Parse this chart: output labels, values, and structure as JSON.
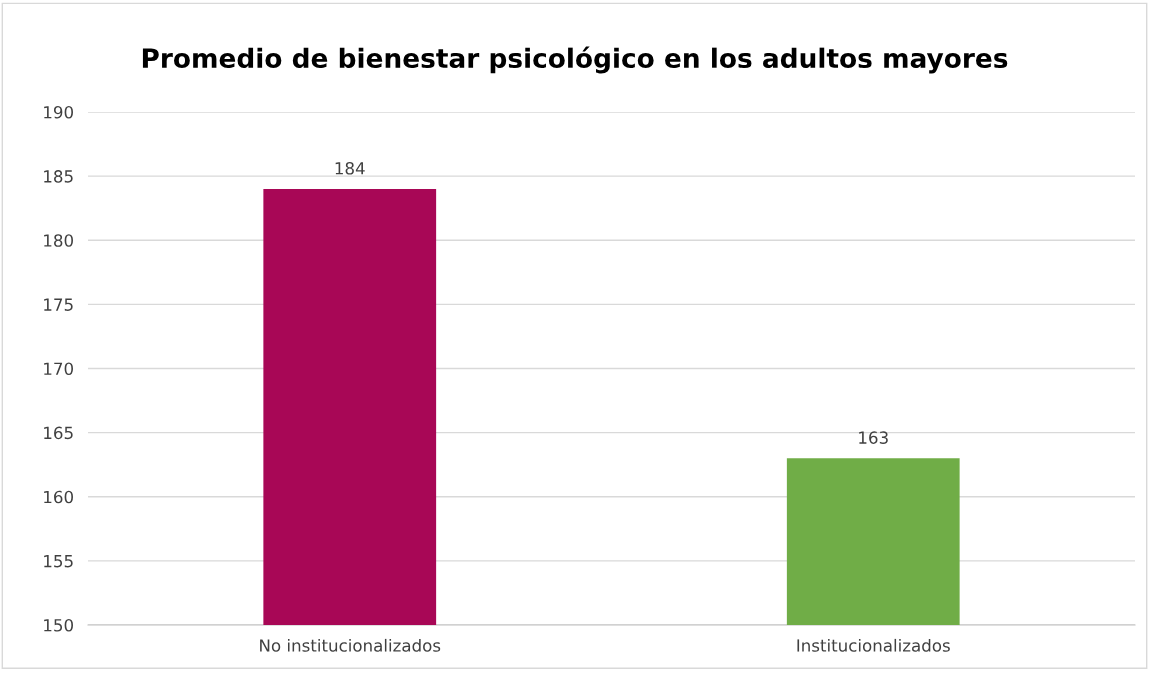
{
  "chart_data": {
    "type": "bar",
    "title": "Promedio de bienestar psicológico en los adultos mayores",
    "categories": [
      "No institucionalizados",
      "Institucionalizados"
    ],
    "values": [
      184,
      163
    ],
    "colors": [
      "#a80756",
      "#70ad47"
    ],
    "ylim": [
      150,
      190
    ],
    "yticks": [
      150,
      155,
      160,
      165,
      170,
      175,
      180,
      185,
      190
    ],
    "grid": "y",
    "data_labels": true
  }
}
